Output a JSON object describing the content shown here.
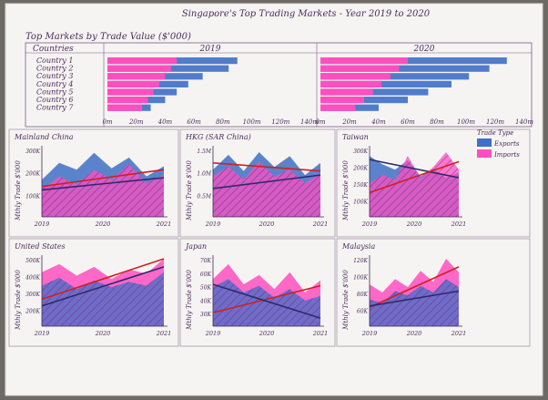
{
  "chart_data": [
    {
      "type": "title",
      "title": "Singapore's Top Trading Markets - Year 2019 to 2020"
    },
    {
      "type": "bar",
      "title": "Top Markets by Trade Value ($'000)",
      "row_header": "Countries",
      "categories": [
        "Country 1",
        "Country 2",
        "Country 3",
        "Country 4",
        "Country 5",
        "Country 6",
        "Country 7"
      ],
      "panels": [
        {
          "label": "2019",
          "ticks": [
            "0m",
            "20m",
            "40m",
            "60m",
            "80m",
            "100m",
            "120m",
            "140m"
          ],
          "xlim": [
            0,
            140
          ],
          "series": [
            {
              "name": "Imports",
              "values": [
                48,
                44,
                40,
                36,
                32,
                28,
                24
              ]
            },
            {
              "name": "Exports",
              "values": [
                90,
                84,
                66,
                56,
                48,
                40,
                30
              ]
            }
          ]
        },
        {
          "label": "2020",
          "ticks": [
            "0m",
            "20m",
            "40m",
            "60m",
            "80m",
            "100m",
            "120m",
            "140m"
          ],
          "xlim": [
            0,
            140
          ],
          "series": [
            {
              "name": "Imports",
              "values": [
                60,
                54,
                48,
                42,
                36,
                30,
                24
              ]
            },
            {
              "name": "Exports",
              "values": [
                128,
                116,
                102,
                90,
                74,
                60,
                40
              ]
            }
          ]
        }
      ]
    },
    {
      "type": "area",
      "title": "Mainland China",
      "ylabel": "Mthly Trade $'000",
      "x_ticks": [
        "2019",
        "2020",
        "2021"
      ],
      "y_ticks": [
        "300K",
        "200K",
        "100K"
      ],
      "series": [
        {
          "name": "Exports",
          "values": [
            55,
            80,
            70,
            95,
            72,
            88,
            60,
            75
          ]
        },
        {
          "name": "Imports",
          "values": [
            40,
            60,
            48,
            70,
            55,
            78,
            50,
            62
          ]
        }
      ],
      "trend_lines": [
        {
          "color": "red",
          "values": [
            45,
            70
          ]
        },
        {
          "color": "dark",
          "values": [
            40,
            58
          ]
        }
      ]
    },
    {
      "type": "area",
      "title": "HKG (SAR China)",
      "ylabel": "Mthly Trade $'000",
      "x_ticks": [
        "2019",
        "2020",
        "2021"
      ],
      "y_ticks": [
        "1.5M",
        "1.0M",
        "0.5M"
      ],
      "series": [
        {
          "name": "Exports",
          "values": [
            70,
            92,
            68,
            96,
            74,
            90,
            62,
            80
          ]
        },
        {
          "name": "Imports",
          "values": [
            60,
            75,
            55,
            82,
            60,
            70,
            50,
            64
          ]
        }
      ],
      "trend_lines": [
        {
          "color": "red",
          "values": [
            80,
            68
          ]
        },
        {
          "color": "dark",
          "values": [
            42,
            62
          ]
        }
      ]
    },
    {
      "type": "area",
      "title": "Taiwan",
      "ylabel": "Mthly Trade $'000",
      "x_ticks": [
        "2019",
        "2020",
        "2021"
      ],
      "y_ticks": [
        "300K",
        "200K",
        "150K",
        "100K"
      ],
      "series": [
        {
          "name": "Exports",
          "values": [
            90,
            78,
            70,
            84,
            60,
            72,
            58,
            66
          ]
        },
        {
          "name": "Imports",
          "values": [
            50,
            62,
            55,
            90,
            58,
            74,
            96,
            70
          ]
        }
      ],
      "trend_lines": [
        {
          "color": "dark",
          "values": [
            85,
            58
          ]
        },
        {
          "color": "red",
          "values": [
            36,
            82
          ]
        }
      ]
    },
    {
      "type": "area",
      "title": "United States",
      "ylabel": "Mthly Trade $'000",
      "x_ticks": [
        "2019",
        "2020",
        "2021"
      ],
      "y_ticks": [
        "500K",
        "400K",
        "300K",
        "200K"
      ],
      "series": [
        {
          "name": "Imports",
          "values": [
            80,
            92,
            75,
            88,
            70,
            84,
            78,
            100
          ]
        },
        {
          "name": "Exports",
          "values": [
            60,
            72,
            55,
            68,
            58,
            66,
            60,
            80
          ]
        }
      ],
      "trend_lines": [
        {
          "color": "red",
          "values": [
            40,
            100
          ]
        },
        {
          "color": "dark",
          "values": [
            30,
            88
          ]
        }
      ]
    },
    {
      "type": "area",
      "title": "Japan",
      "ylabel": "Mthly Trade $'000",
      "x_ticks": [
        "2019",
        "2020",
        "2021"
      ],
      "y_ticks": [
        "70K",
        "60K",
        "50K",
        "40K",
        "30K"
      ],
      "series": [
        {
          "name": "Imports",
          "values": [
            70,
            92,
            62,
            76,
            55,
            80,
            50,
            68
          ]
        },
        {
          "name": "Exports",
          "values": [
            58,
            70,
            50,
            60,
            42,
            55,
            38,
            45
          ]
        }
      ],
      "trend_lines": [
        {
          "color": "red",
          "values": [
            20,
            60
          ]
        },
        {
          "color": "dark",
          "values": [
            62,
            12
          ]
        }
      ]
    },
    {
      "type": "area",
      "title": "Malaysia",
      "ylabel": "Mthly Trade $'000",
      "x_ticks": [
        "2019",
        "2020",
        "2021"
      ],
      "y_ticks": [
        "120K",
        "100K",
        "80K",
        "60K"
      ],
      "series": [
        {
          "name": "Imports",
          "values": [
            62,
            50,
            70,
            58,
            82,
            66,
            100,
            80
          ]
        },
        {
          "name": "Exports",
          "values": [
            40,
            34,
            52,
            46,
            60,
            50,
            70,
            58
          ]
        }
      ],
      "trend_lines": [
        {
          "color": "red",
          "values": [
            28,
            88
          ]
        },
        {
          "color": "dark",
          "values": [
            30,
            52
          ]
        }
      ]
    },
    {
      "type": "legend",
      "title": "Trade Type",
      "entries": [
        {
          "name": "Exports",
          "color": "#3f6fc6"
        },
        {
          "name": "Imports",
          "color": "#ff4fbf"
        }
      ]
    }
  ],
  "colors": {
    "imports": "#ff4fbf",
    "exports": "#3f6fc6",
    "overlap": "#8a3fb0",
    "trend_red": "#d0201e",
    "trend_dark": "#2d2a6e",
    "ink": "#4a2b5e"
  }
}
